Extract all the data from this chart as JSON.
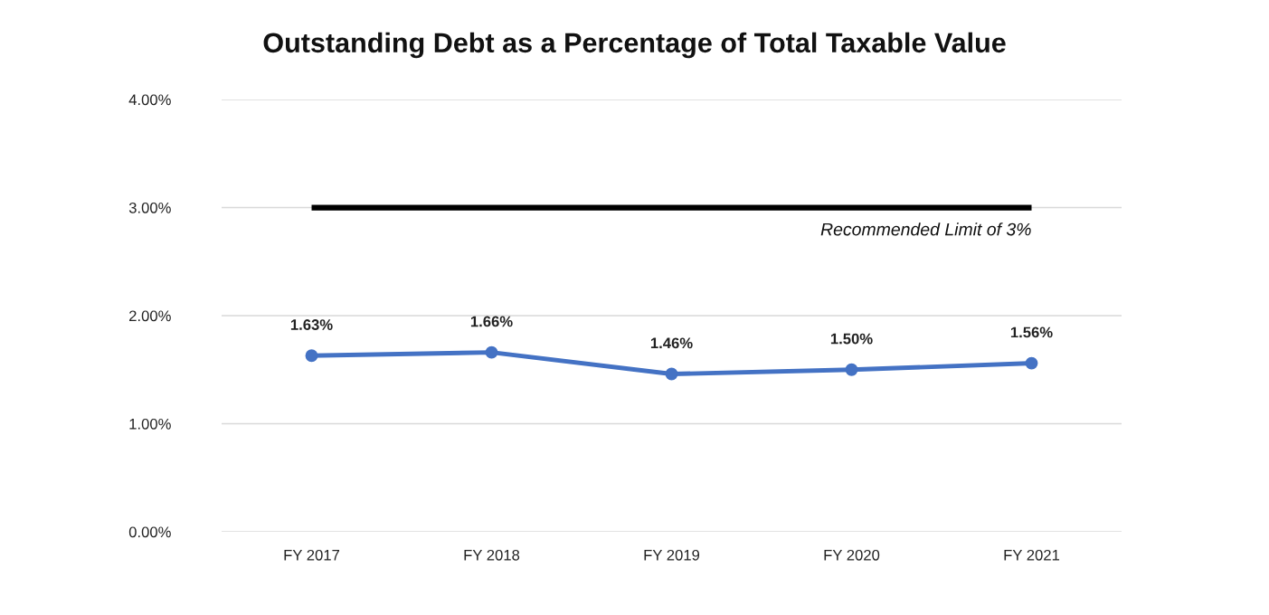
{
  "chart_data": {
    "type": "line",
    "title": "Outstanding Debt as a Percentage of Total Taxable Value",
    "categories": [
      "FY 2017",
      "FY 2018",
      "FY 2019",
      "FY 2020",
      "FY 2021"
    ],
    "series": [
      {
        "color": "#4472c4",
        "values": [
          1.63,
          1.66,
          1.46,
          1.5,
          1.56
        ],
        "value_labels": [
          "1.63%",
          "1.66%",
          "1.46%",
          "1.50%",
          "1.56%"
        ]
      }
    ],
    "ylim": [
      0,
      4
    ],
    "yticks": [
      {
        "value": 0,
        "label": "0.00%"
      },
      {
        "value": 1,
        "label": "1.00%"
      },
      {
        "value": 2,
        "label": "2.00%"
      },
      {
        "value": 3,
        "label": "3.00%"
      },
      {
        "value": 4,
        "label": "4.00%"
      }
    ],
    "ref_lines": [
      {
        "axis": "y",
        "value": 3,
        "label": "Recommended Limit of 3%",
        "color": "#000000"
      }
    ],
    "grid": "y",
    "marker": "circle",
    "line_style": "solid"
  }
}
